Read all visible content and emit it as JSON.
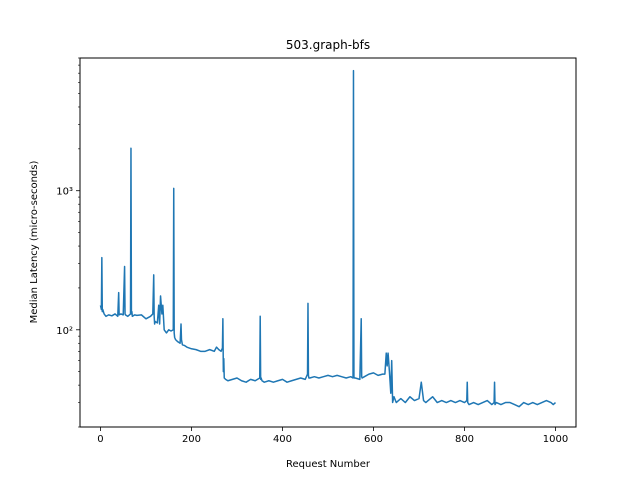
{
  "chart_data": {
    "type": "line",
    "title": "503.graph-bfs",
    "xlabel": "Request Number",
    "ylabel": "Median Latency (micro-seconds)",
    "xlim": [
      -45,
      1045
    ],
    "ylim": [
      20,
      9000
    ],
    "yscale": "log",
    "grid": false,
    "legend": "none",
    "x_ticks": [
      0,
      200,
      400,
      600,
      800,
      1000
    ],
    "x_tick_labels": [
      "0",
      "200",
      "400",
      "600",
      "800",
      "1000"
    ],
    "y_major_ticks": [
      100,
      1000
    ],
    "y_major_tick_labels": [
      "10²",
      "10³"
    ],
    "series": [
      {
        "color": "#1f77b4",
        "x": [
          0,
          2,
          3,
          4,
          5,
          8,
          12,
          18,
          25,
          32,
          38,
          40,
          41,
          45,
          50,
          53,
          54,
          55,
          60,
          66,
          67,
          68,
          69,
          70,
          75,
          80,
          90,
          100,
          110,
          115,
          117,
          118,
          119,
          120,
          125,
          128,
          130,
          132,
          135,
          137,
          140,
          145,
          150,
          155,
          160,
          161,
          162,
          163,
          165,
          170,
          175,
          177,
          178,
          180,
          185,
          190,
          200,
          210,
          220,
          230,
          240,
          250,
          255,
          260,
          265,
          268,
          269,
          270,
          271,
          272,
          275,
          280,
          290,
          300,
          310,
          320,
          330,
          340,
          350,
          351,
          352,
          353,
          355,
          360,
          370,
          380,
          390,
          400,
          410,
          420,
          430,
          440,
          450,
          455,
          456,
          457,
          458,
          460,
          470,
          480,
          490,
          500,
          510,
          520,
          530,
          540,
          550,
          555,
          556,
          557,
          558,
          560,
          570,
          573,
          574,
          575,
          580,
          590,
          600,
          610,
          620,
          625,
          628,
          630,
          632,
          635,
          638,
          640,
          642,
          645,
          650,
          655,
          660,
          670,
          680,
          690,
          700,
          705,
          710,
          715,
          720,
          730,
          740,
          750,
          760,
          770,
          780,
          790,
          800,
          805,
          806,
          807,
          810,
          820,
          830,
          840,
          850,
          860,
          865,
          866,
          867,
          870,
          880,
          890,
          900,
          910,
          920,
          930,
          940,
          950,
          960,
          970,
          980,
          990,
          995,
          1000
        ],
        "y": [
          150,
          140,
          330,
          135,
          140,
          130,
          125,
          128,
          126,
          130,
          125,
          185,
          128,
          130,
          128,
          285,
          130,
          128,
          125,
          130,
          2020,
          130,
          135,
          125,
          128,
          127,
          128,
          120,
          125,
          130,
          248,
          125,
          110,
          115,
          112,
          150,
          110,
          175,
          130,
          150,
          100,
          95,
          100,
          98,
          100,
          1040,
          95,
          88,
          85,
          82,
          80,
          110,
          85,
          78,
          77,
          75,
          73,
          72,
          70,
          70,
          72,
          70,
          75,
          72,
          70,
          74,
          120,
          50,
          62,
          45,
          44,
          43,
          44,
          45,
          43,
          42,
          44,
          43,
          45,
          125,
          44,
          45,
          43,
          42,
          43,
          42,
          43,
          44,
          42,
          43,
          44,
          45,
          44,
          48,
          155,
          47,
          45,
          45,
          46,
          45,
          46,
          47,
          46,
          47,
          46,
          45,
          46,
          45,
          7300,
          46,
          45,
          45,
          44,
          120,
          46,
          45,
          46,
          48,
          49,
          47,
          48,
          48,
          68,
          55,
          68,
          50,
          35,
          60,
          30,
          33,
          30,
          31,
          32,
          30,
          33,
          31,
          32,
          42,
          31,
          30,
          31,
          33,
          30,
          31,
          30,
          31,
          30,
          31,
          30,
          31,
          42,
          30,
          29,
          30,
          29,
          30,
          31,
          29,
          30,
          42,
          29,
          30,
          29,
          30,
          30,
          29,
          28,
          30,
          29,
          30,
          29,
          30,
          31,
          30,
          29,
          30
        ]
      }
    ]
  }
}
